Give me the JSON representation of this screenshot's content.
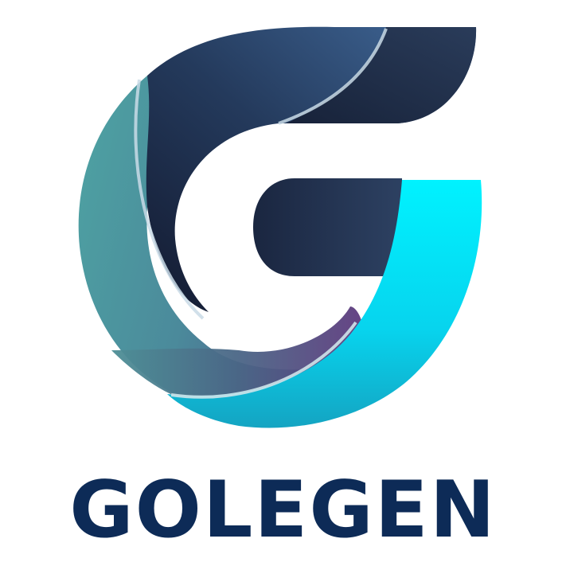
{
  "brand": {
    "name": "GOLEGEN",
    "colors": {
      "wordmark": "#0d2b57",
      "navy_dark": "#141c33",
      "navy_mid": "#2b4266",
      "navy_light": "#3e6796",
      "teal": "#4c9ea0",
      "teal_light": "#58b2ad",
      "purple": "#5a3d80",
      "cyan": "#00eaff",
      "cyan_deep": "#0fb0cc",
      "highlight": "#c9dbe6"
    },
    "icons": [
      "g-letter-logo-icon"
    ]
  }
}
